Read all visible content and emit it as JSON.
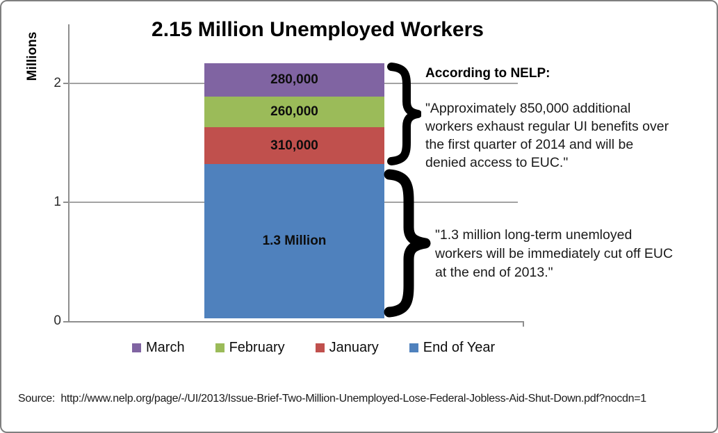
{
  "chart_data": {
    "type": "bar",
    "stacked": true,
    "title": "2.15 Million Unemployed Workers",
    "ylabel": "Millions",
    "ylim": [
      0,
      2.5
    ],
    "yticks": [
      "0",
      "1",
      "2"
    ],
    "grid": true,
    "legend_position": "bottom",
    "categories": [
      "Unemployed Workers"
    ],
    "series": [
      {
        "name": "End of Year",
        "value": 1.3,
        "data_label": "1.3 Million",
        "color": "#4F81BD"
      },
      {
        "name": "January",
        "value": 0.31,
        "data_label": "310,000",
        "color": "#C0504D"
      },
      {
        "name": "February",
        "value": 0.26,
        "data_label": "260,000",
        "color": "#9BBB59"
      },
      {
        "name": "March",
        "value": 0.28,
        "data_label": "280,000",
        "color": "#8064A2"
      }
    ]
  },
  "annotations": {
    "heading": "According to NELP:",
    "quote1_lines": [
      "\"Approximately 850,000 additional",
      "workers exhaust regular UI benefits over",
      "the first quarter of 2014 and will be",
      "denied access to EUC.\""
    ],
    "quote2_lines": [
      "\"1.3 million long-term unemloyed",
      "workers will be immediately cut off EUC",
      "at the end of 2013.\""
    ]
  },
  "source": "Source:  http://www.nelp.org/page/-/UI/2013/Issue-Brief-Two-Million-Unemployed-Lose-Federal-Jobless-Aid-Shut-Down.pdf?nocdn=1"
}
